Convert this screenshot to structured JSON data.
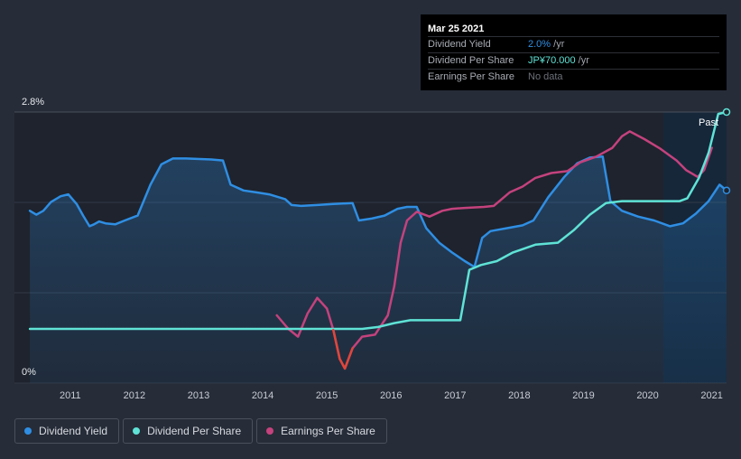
{
  "chart_data": {
    "type": "line",
    "y_ticks": [
      "2.8%",
      "0%"
    ],
    "ylim": [
      0,
      2.8
    ],
    "x_ticks": [
      "2011",
      "2012",
      "2013",
      "2014",
      "2015",
      "2016",
      "2017",
      "2018",
      "2019",
      "2020",
      "2021"
    ],
    "past_label": "Past",
    "series": [
      {
        "name": "Dividend Yield",
        "color": "#2f8ee3",
        "points": [
          [
            2010.37,
            1.78
          ],
          [
            2010.47,
            1.74
          ],
          [
            2010.58,
            1.78
          ],
          [
            2010.7,
            1.87
          ],
          [
            2010.85,
            1.93
          ],
          [
            2010.97,
            1.95
          ],
          [
            2011.1,
            1.85
          ],
          [
            2011.2,
            1.73
          ],
          [
            2011.3,
            1.62
          ],
          [
            2011.37,
            1.64
          ],
          [
            2011.45,
            1.67
          ],
          [
            2011.55,
            1.65
          ],
          [
            2011.7,
            1.64
          ],
          [
            2011.85,
            1.68
          ],
          [
            2012.05,
            1.73
          ],
          [
            2012.25,
            2.05
          ],
          [
            2012.42,
            2.26
          ],
          [
            2012.6,
            2.32
          ],
          [
            2012.8,
            2.32
          ],
          [
            2013.2,
            2.31
          ],
          [
            2013.38,
            2.3
          ],
          [
            2013.5,
            2.05
          ],
          [
            2013.7,
            1.99
          ],
          [
            2013.9,
            1.97
          ],
          [
            2014.1,
            1.95
          ],
          [
            2014.35,
            1.9
          ],
          [
            2014.45,
            1.84
          ],
          [
            2014.6,
            1.83
          ],
          [
            2014.85,
            1.84
          ],
          [
            2015.1,
            1.85
          ],
          [
            2015.4,
            1.86
          ],
          [
            2015.5,
            1.68
          ],
          [
            2015.7,
            1.7
          ],
          [
            2015.9,
            1.73
          ],
          [
            2016.1,
            1.8
          ],
          [
            2016.25,
            1.82
          ],
          [
            2016.4,
            1.82
          ],
          [
            2016.55,
            1.6
          ],
          [
            2016.75,
            1.45
          ],
          [
            2016.95,
            1.35
          ],
          [
            2017.15,
            1.26
          ],
          [
            2017.3,
            1.2
          ],
          [
            2017.42,
            1.5
          ],
          [
            2017.55,
            1.57
          ],
          [
            2017.8,
            1.6
          ],
          [
            2018.05,
            1.63
          ],
          [
            2018.22,
            1.68
          ],
          [
            2018.45,
            1.92
          ],
          [
            2018.7,
            2.13
          ],
          [
            2018.9,
            2.27
          ],
          [
            2019.1,
            2.33
          ],
          [
            2019.3,
            2.34
          ],
          [
            2019.42,
            1.88
          ],
          [
            2019.6,
            1.78
          ],
          [
            2019.85,
            1.72
          ],
          [
            2020.1,
            1.68
          ],
          [
            2020.35,
            1.62
          ],
          [
            2020.55,
            1.65
          ],
          [
            2020.75,
            1.75
          ],
          [
            2020.95,
            1.88
          ],
          [
            2021.12,
            2.05
          ],
          [
            2021.23,
            1.99
          ]
        ]
      },
      {
        "name": "Dividend Per Share",
        "color": "#5fe3d6",
        "points": [
          [
            2010.37,
            0.56
          ],
          [
            2015.55,
            0.56
          ],
          [
            2015.8,
            0.58
          ],
          [
            2016.05,
            0.62
          ],
          [
            2016.3,
            0.65
          ],
          [
            2016.65,
            0.65
          ],
          [
            2017.08,
            0.65
          ],
          [
            2017.22,
            1.17
          ],
          [
            2017.4,
            1.22
          ],
          [
            2017.65,
            1.26
          ],
          [
            2017.9,
            1.35
          ],
          [
            2018.25,
            1.43
          ],
          [
            2018.6,
            1.45
          ],
          [
            2018.85,
            1.58
          ],
          [
            2019.1,
            1.74
          ],
          [
            2019.35,
            1.86
          ],
          [
            2019.6,
            1.88
          ],
          [
            2020.5,
            1.88
          ],
          [
            2020.62,
            1.91
          ],
          [
            2020.8,
            2.12
          ],
          [
            2020.95,
            2.38
          ],
          [
            2021.1,
            2.78
          ],
          [
            2021.23,
            2.8
          ]
        ]
      },
      {
        "name": "Earnings Per Share",
        "color": "#c4427d",
        "points": [
          [
            2014.22,
            0.7
          ],
          [
            2014.4,
            0.56
          ],
          [
            2014.55,
            0.48
          ],
          [
            2014.7,
            0.72
          ],
          [
            2014.85,
            0.88
          ],
          [
            2015.0,
            0.77
          ],
          [
            2015.1,
            0.55
          ],
          [
            2015.2,
            0.25
          ],
          [
            2015.28,
            0.15
          ],
          [
            2015.4,
            0.36
          ],
          [
            2015.55,
            0.48
          ],
          [
            2015.75,
            0.5
          ],
          [
            2015.95,
            0.7
          ],
          [
            2016.05,
            1.0
          ],
          [
            2016.15,
            1.45
          ],
          [
            2016.25,
            1.68
          ],
          [
            2016.4,
            1.77
          ],
          [
            2016.6,
            1.72
          ],
          [
            2016.8,
            1.78
          ],
          [
            2016.95,
            1.8
          ],
          [
            2017.15,
            1.81
          ],
          [
            2017.45,
            1.82
          ],
          [
            2017.6,
            1.83
          ],
          [
            2017.85,
            1.97
          ],
          [
            2018.05,
            2.03
          ],
          [
            2018.25,
            2.12
          ],
          [
            2018.5,
            2.17
          ],
          [
            2018.75,
            2.19
          ],
          [
            2018.95,
            2.28
          ],
          [
            2019.2,
            2.34
          ],
          [
            2019.45,
            2.43
          ],
          [
            2019.6,
            2.55
          ],
          [
            2019.72,
            2.6
          ],
          [
            2019.95,
            2.52
          ],
          [
            2020.2,
            2.42
          ],
          [
            2020.45,
            2.3
          ],
          [
            2020.6,
            2.2
          ],
          [
            2020.78,
            2.13
          ],
          [
            2020.88,
            2.2
          ],
          [
            2021.0,
            2.43
          ]
        ]
      }
    ]
  },
  "tooltip": {
    "date": "Mar 25 2021",
    "rows": [
      {
        "label": "Dividend Yield",
        "value": "2.0%",
        "unit": " /yr",
        "color": "#2f8ee3"
      },
      {
        "label": "Dividend Per Share",
        "value": "JP¥70.000",
        "unit": " /yr",
        "color": "#5fe3d6"
      },
      {
        "label": "Earnings Per Share",
        "value": "No data",
        "unit": "",
        "color": "#6c7078"
      }
    ]
  },
  "legend": [
    {
      "label": "Dividend Yield",
      "color": "#2f8ee3"
    },
    {
      "label": "Dividend Per Share",
      "color": "#5fe3d6"
    },
    {
      "label": "Earnings Per Share",
      "color": "#c4427d"
    }
  ]
}
